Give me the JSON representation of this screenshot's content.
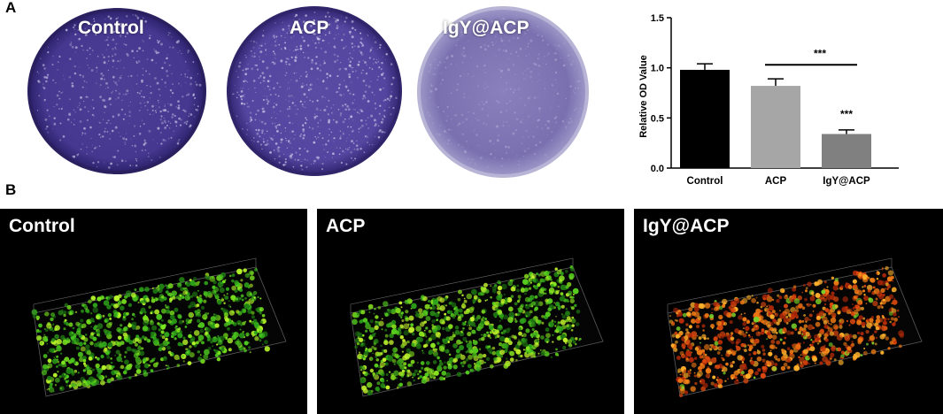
{
  "panels": {
    "a": {
      "letter": "A"
    },
    "b": {
      "letter": "B"
    }
  },
  "dishes": [
    {
      "label": "Control",
      "color": "#4b3b92"
    },
    {
      "label": "ACP",
      "color": "#5547a0"
    },
    {
      "label": "IgY@ACP",
      "color": "#7e74b3"
    }
  ],
  "confocal": [
    {
      "label": "Control",
      "palette": [
        "#2ea31a",
        "#4dc81e",
        "#7ce61e",
        "#b6f52a",
        "#1f7d12"
      ]
    },
    {
      "label": "ACP",
      "palette": [
        "#2ea31a",
        "#55cc1e",
        "#8ae41f",
        "#c3f22c",
        "#1f7512"
      ]
    },
    {
      "label": "IgY@ACP",
      "palette": [
        "#b52a08",
        "#d9480e",
        "#f07a14",
        "#ffb02a",
        "#7bd12a"
      ]
    }
  ],
  "chart_data": {
    "type": "bar",
    "categories": [
      "Control",
      "ACP",
      "IgY@ACP"
    ],
    "values": [
      0.98,
      0.82,
      0.34
    ],
    "errors": [
      0.06,
      0.07,
      0.04
    ],
    "colors": [
      "#000000",
      "#a6a6a6",
      "#808080"
    ],
    "ylabel": "Relative OD Value",
    "ylim": [
      0,
      1.5
    ],
    "yticks": [
      "0.0",
      "0.5",
      "1.0",
      "1.5"
    ],
    "annotations": [
      {
        "text": "***",
        "type": "bracket",
        "between": [
          "ACP",
          "IgY@ACP"
        ]
      },
      {
        "text": "***",
        "type": "bar",
        "category": "IgY@ACP"
      }
    ],
    "grid": false
  }
}
